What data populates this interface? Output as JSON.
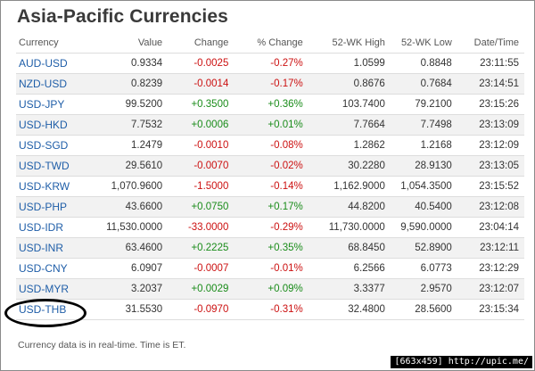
{
  "title": "Asia-Pacific Currencies",
  "columns": [
    "Currency",
    "Value",
    "Change",
    "% Change",
    "52-WK High",
    "52-WK Low",
    "Date/Time"
  ],
  "rows": [
    {
      "symbol": "AUD-USD",
      "value": "0.9334",
      "change": "-0.0025",
      "pct": "-0.27%",
      "high": "1.0599",
      "low": "0.8848",
      "time": "23:11:55",
      "dir": "neg"
    },
    {
      "symbol": "NZD-USD",
      "value": "0.8239",
      "change": "-0.0014",
      "pct": "-0.17%",
      "high": "0.8676",
      "low": "0.7684",
      "time": "23:14:51",
      "dir": "neg"
    },
    {
      "symbol": "USD-JPY",
      "value": "99.5200",
      "change": "+0.3500",
      "pct": "+0.36%",
      "high": "103.7400",
      "low": "79.2100",
      "time": "23:15:26",
      "dir": "pos"
    },
    {
      "symbol": "USD-HKD",
      "value": "7.7532",
      "change": "+0.0006",
      "pct": "+0.01%",
      "high": "7.7664",
      "low": "7.7498",
      "time": "23:13:09",
      "dir": "pos"
    },
    {
      "symbol": "USD-SGD",
      "value": "1.2479",
      "change": "-0.0010",
      "pct": "-0.08%",
      "high": "1.2862",
      "low": "1.2168",
      "time": "23:12:09",
      "dir": "neg"
    },
    {
      "symbol": "USD-TWD",
      "value": "29.5610",
      "change": "-0.0070",
      "pct": "-0.02%",
      "high": "30.2280",
      "low": "28.9130",
      "time": "23:13:05",
      "dir": "neg"
    },
    {
      "symbol": "USD-KRW",
      "value": "1,070.9600",
      "change": "-1.5000",
      "pct": "-0.14%",
      "high": "1,162.9000",
      "low": "1,054.3500",
      "time": "23:15:52",
      "dir": "neg"
    },
    {
      "symbol": "USD-PHP",
      "value": "43.6600",
      "change": "+0.0750",
      "pct": "+0.17%",
      "high": "44.8200",
      "low": "40.5400",
      "time": "23:12:08",
      "dir": "pos"
    },
    {
      "symbol": "USD-IDR",
      "value": "11,530.0000",
      "change": "-33.0000",
      "pct": "-0.29%",
      "high": "11,730.0000",
      "low": "9,590.0000",
      "time": "23:04:14",
      "dir": "neg"
    },
    {
      "symbol": "USD-INR",
      "value": "63.4600",
      "change": "+0.2225",
      "pct": "+0.35%",
      "high": "68.8450",
      "low": "52.8900",
      "time": "23:12:11",
      "dir": "pos"
    },
    {
      "symbol": "USD-CNY",
      "value": "6.0907",
      "change": "-0.0007",
      "pct": "-0.01%",
      "high": "6.2566",
      "low": "6.0773",
      "time": "23:12:29",
      "dir": "neg"
    },
    {
      "symbol": "USD-MYR",
      "value": "3.2037",
      "change": "+0.0029",
      "pct": "+0.09%",
      "high": "3.3377",
      "low": "2.9570",
      "time": "23:12:07",
      "dir": "pos"
    },
    {
      "symbol": "USD-THB",
      "value": "31.5530",
      "change": "-0.0970",
      "pct": "-0.31%",
      "high": "32.4800",
      "low": "28.5600",
      "time": "23:15:34",
      "dir": "neg"
    }
  ],
  "footer": "Currency data is in real-time. Time is ET.",
  "watermark": "[663x459] http://upic.me/",
  "colors": {
    "positive": "#1a8c1a",
    "negative": "#cc1111",
    "link": "#1f5ea8"
  }
}
